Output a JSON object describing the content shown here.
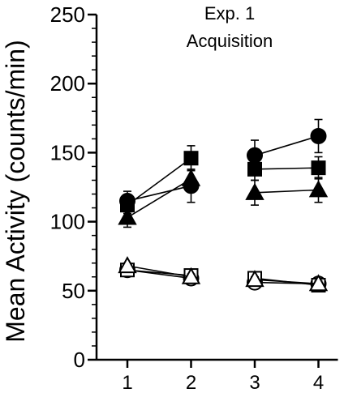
{
  "chart_data": {
    "type": "line",
    "title": "Exp. 1",
    "subtitle": "Acquisition",
    "xlabel": "",
    "ylabel": "Mean Activity (counts/min)",
    "ylim": [
      0,
      250
    ],
    "yticks": [
      0,
      50,
      100,
      150,
      200,
      250
    ],
    "y_minor_step": 10,
    "x": [
      1,
      2,
      3,
      4
    ],
    "xticks": [
      "1",
      "2",
      "3",
      "4"
    ],
    "grid": false,
    "legend": "none",
    "series": [
      {
        "marker": "circle",
        "fill": "filled",
        "values": [
          115,
          126,
          148,
          162
        ],
        "error": [
          7,
          12,
          11,
          12
        ]
      },
      {
        "marker": "square",
        "fill": "filled",
        "values": [
          112,
          146,
          138,
          139
        ],
        "error": [
          6,
          9,
          8,
          8
        ]
      },
      {
        "marker": "triangle",
        "fill": "filled",
        "values": [
          103,
          131,
          121,
          123
        ],
        "error": [
          7,
          6,
          9,
          9
        ]
      },
      {
        "marker": "circle",
        "fill": "open",
        "values": [
          65,
          59,
          56,
          55
        ],
        "error": [
          2,
          2,
          2,
          2
        ]
      },
      {
        "marker": "square",
        "fill": "open",
        "values": [
          65,
          61,
          59,
          54
        ],
        "error": [
          2,
          2,
          2,
          2
        ]
      },
      {
        "marker": "triangle",
        "fill": "open",
        "values": [
          68,
          60,
          58,
          55
        ],
        "error": [
          2,
          2,
          2,
          2
        ]
      }
    ],
    "colors": {
      "ink": "#000000",
      "open_fill": "#ffffff"
    }
  }
}
